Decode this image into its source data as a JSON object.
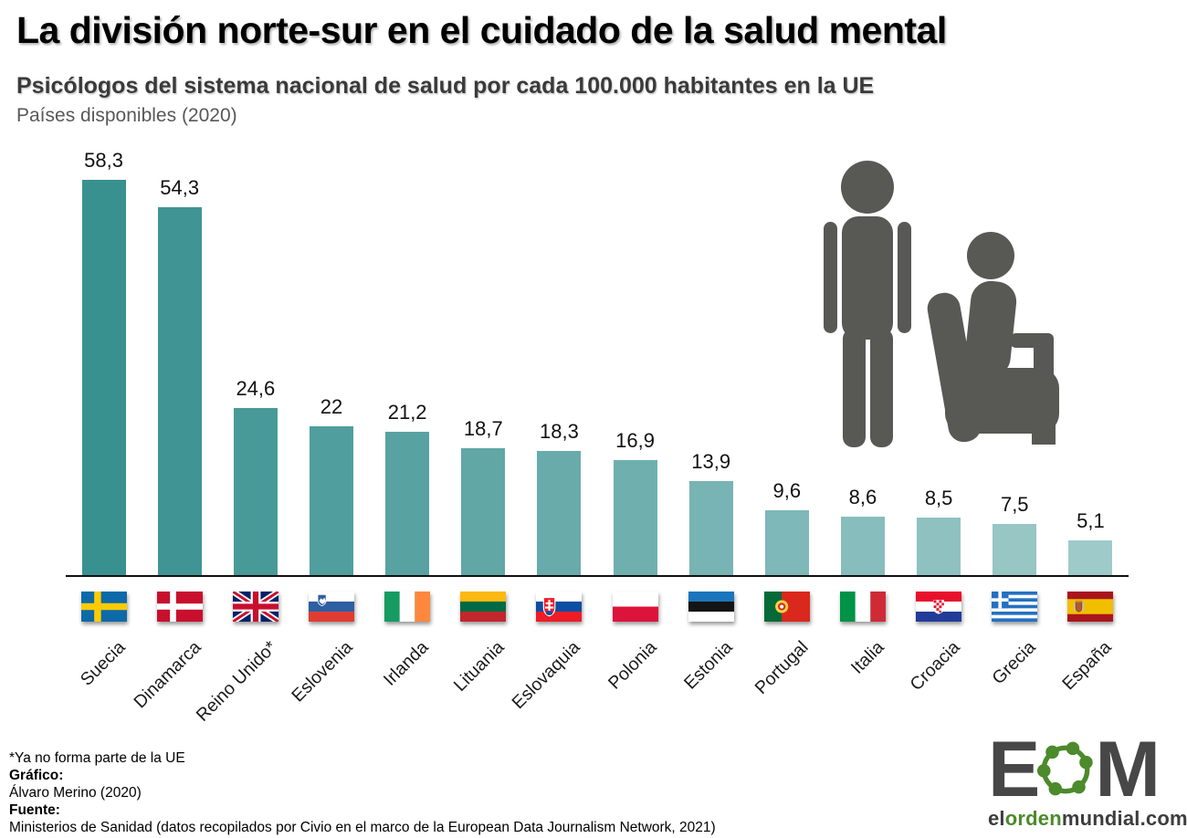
{
  "header": {
    "title": "La división norte-sur en el cuidado de la salud mental",
    "subtitle": "Psicólogos del sistema nacional de salud por cada 100.000 habitantes en la UE",
    "scope_note": "Países disponibles (2020)"
  },
  "chart_data": {
    "type": "bar",
    "title": "La división norte-sur en el cuidado de la salud mental",
    "subtitle": "Psicólogos del sistema nacional de salud por cada 100.000 habitantes en la UE (2020)",
    "categories": [
      "Suecia",
      "Dinamarca",
      "Reino Unido*",
      "Eslovenia",
      "Irlanda",
      "Lituania",
      "Eslovaquia",
      "Polonia",
      "Estonia",
      "Portugal",
      "Italia",
      "Croacia",
      "Grecia",
      "España"
    ],
    "values": [
      58.3,
      54.3,
      24.6,
      22,
      21.2,
      18.7,
      18.3,
      16.9,
      13.9,
      9.6,
      8.6,
      8.5,
      7.5,
      5.1
    ],
    "value_labels": [
      "58,3",
      "54,3",
      "24,6",
      "22",
      "21,2",
      "18,7",
      "18,3",
      "16,9",
      "13,9",
      "9,6",
      "8,6",
      "8,5",
      "7,5",
      "5,1"
    ],
    "flags": [
      "se",
      "dk",
      "gb",
      "si",
      "ie",
      "lt",
      "sk",
      "pl",
      "ee",
      "pt",
      "it",
      "hr",
      "gr",
      "es"
    ],
    "xlabel": "",
    "ylabel": "",
    "ylim": [
      0,
      60
    ],
    "grid": false,
    "legend": "none",
    "bar_color_start": "#38918F",
    "bar_color_end": "#9FCACA",
    "axis_color": "#111111"
  },
  "footnote": "*Ya no forma parte de la UE",
  "credits": {
    "grafico_label": "Gráfico:",
    "grafico_value": "Álvaro Merino (2020)",
    "fuente_label": "Fuente:",
    "fuente_value": "Ministerios de Sanidad (datos recopilados por Civio en el marco de la European Data Journalism Network, 2021)"
  },
  "logo": {
    "letter_e": "E",
    "letter_m": "M",
    "url_el": "el",
    "url_orden": "orden",
    "url_mundial": "mundial.com",
    "green": "#4C8A2B",
    "dark": "#474747"
  },
  "icon": {
    "name": "therapy-session-icon",
    "color": "#585855"
  }
}
